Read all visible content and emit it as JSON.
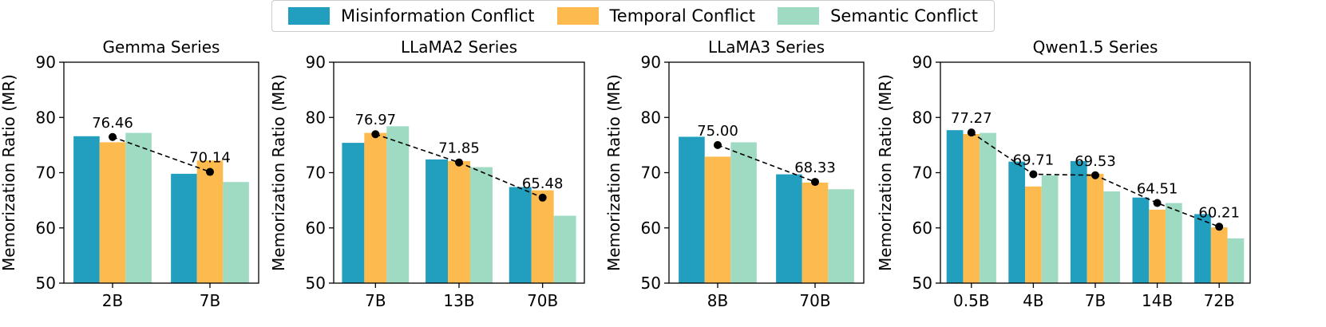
{
  "legend": {
    "items": [
      {
        "label": "Misinformation Conflict",
        "color": "#229EBF"
      },
      {
        "label": "Temporal Conflict",
        "color": "#FDBA4E"
      },
      {
        "label": "Semantic Conflict",
        "color": "#9FDAC2"
      }
    ]
  },
  "chart_data": [
    {
      "type": "bar",
      "title": "Gemma Series",
      "ylabel": "Memorization Ratio (MR)",
      "ylim": [
        50,
        90
      ],
      "yticks": [
        50,
        60,
        70,
        80,
        90
      ],
      "categories": [
        "2B",
        "7B"
      ],
      "series": [
        {
          "name": "Misinformation Conflict",
          "values": [
            76.6,
            69.8
          ]
        },
        {
          "name": "Temporal Conflict",
          "values": [
            75.5,
            72.2
          ]
        },
        {
          "name": "Semantic Conflict",
          "values": [
            77.2,
            68.3
          ]
        }
      ],
      "average_line": {
        "values": [
          76.46,
          70.14
        ],
        "labels": [
          "76.46",
          "70.14"
        ]
      }
    },
    {
      "type": "bar",
      "title": "LLaMA2 Series",
      "ylabel": "Memorization Ratio (MR)",
      "ylim": [
        50,
        90
      ],
      "yticks": [
        50,
        60,
        70,
        80,
        90
      ],
      "categories": [
        "7B",
        "13B",
        "70B"
      ],
      "series": [
        {
          "name": "Misinformation Conflict",
          "values": [
            75.4,
            72.4,
            67.4
          ]
        },
        {
          "name": "Temporal Conflict",
          "values": [
            77.2,
            72.1,
            66.8
          ]
        },
        {
          "name": "Semantic Conflict",
          "values": [
            78.4,
            71.0,
            62.2
          ]
        }
      ],
      "average_line": {
        "values": [
          76.97,
          71.85,
          65.48
        ],
        "labels": [
          "76.97",
          "71.85",
          "65.48"
        ]
      }
    },
    {
      "type": "bar",
      "title": "LLaMA3 Series",
      "ylabel": "Memorization Ratio (MR)",
      "ylim": [
        50,
        90
      ],
      "yticks": [
        50,
        60,
        70,
        80,
        90
      ],
      "categories": [
        "8B",
        "70B"
      ],
      "series": [
        {
          "name": "Misinformation Conflict",
          "values": [
            76.5,
            69.7
          ]
        },
        {
          "name": "Temporal Conflict",
          "values": [
            72.9,
            68.2
          ]
        },
        {
          "name": "Semantic Conflict",
          "values": [
            75.5,
            67.0
          ]
        }
      ],
      "average_line": {
        "values": [
          75.0,
          68.33
        ],
        "labels": [
          "75.00",
          "68.33"
        ]
      }
    },
    {
      "type": "bar",
      "title": "Qwen1.5 Series",
      "ylabel": "Memorization Ratio (MR)",
      "ylim": [
        50,
        90
      ],
      "yticks": [
        50,
        60,
        70,
        80,
        90
      ],
      "categories": [
        "0.5B",
        "4B",
        "7B",
        "14B",
        "72B"
      ],
      "series": [
        {
          "name": "Misinformation Conflict",
          "values": [
            77.7,
            72.0,
            72.1,
            65.5,
            62.5
          ]
        },
        {
          "name": "Temporal Conflict",
          "values": [
            77.0,
            67.5,
            69.8,
            63.3,
            60.1
          ]
        },
        {
          "name": "Semantic Conflict",
          "values": [
            77.2,
            69.5,
            66.6,
            64.5,
            58.1
          ]
        }
      ],
      "average_line": {
        "values": [
          77.27,
          69.71,
          69.53,
          64.51,
          60.21
        ],
        "labels": [
          "77.27",
          "69.71",
          "69.53",
          "64.51",
          "60.21"
        ]
      }
    }
  ]
}
